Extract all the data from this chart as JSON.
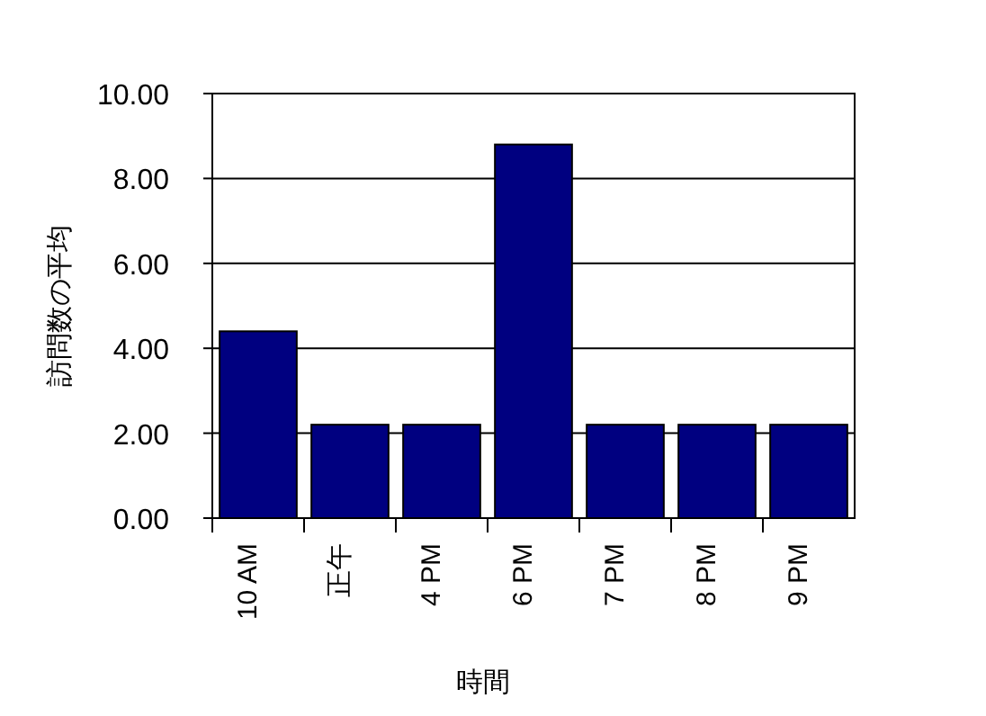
{
  "chart_data": {
    "type": "bar",
    "xlabel": "時間",
    "ylabel": "訪問数の平均",
    "categories": [
      "10 AM",
      "正午",
      "4 PM",
      "6 PM",
      "7 PM",
      "8 PM",
      "9 PM"
    ],
    "values": [
      4.4,
      2.2,
      2.2,
      8.8,
      2.2,
      2.2,
      2.2
    ],
    "color": "#000080",
    "ylim": [
      0,
      10
    ],
    "yticks": [
      {
        "value": 0,
        "label": "0.00"
      },
      {
        "value": 2,
        "label": "2.00"
      },
      {
        "value": 4,
        "label": "4.00"
      },
      {
        "value": 6,
        "label": "6.00"
      },
      {
        "value": 8,
        "label": "8.00"
      },
      {
        "value": 10,
        "label": "10.00"
      }
    ],
    "grid": "y"
  }
}
